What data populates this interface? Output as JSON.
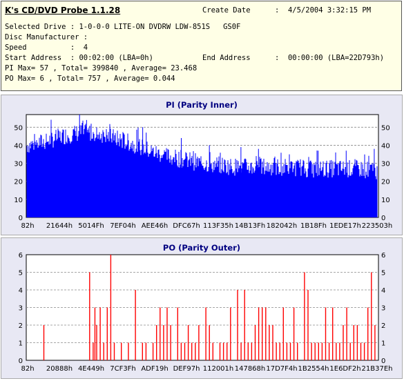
{
  "header": {
    "app_title": "K's CD/DVD Probe 1.1.28",
    "create_date_label": "Create Date",
    "create_date_value": ":  4/5/2004 3:32:15 PM",
    "selected_drive": "Selected Drive : 1-0-0-0 LITE-ON DVDRW LDW-851S   GS0F",
    "disc_manufacturer": "Disc Manufacturer :",
    "speed": "Speed          :  4",
    "start_address": "Start Address  : 00:02:00 (LBA=0h)",
    "end_address_label": "End Address",
    "end_address_value": ":  00:00:00 (LBA=22D793h)",
    "pi_summary": "PI Max= 57 , Total= 399840 , Average= 23.468",
    "po_summary": "PO Max= 6 , Total= 757 , Average= 0.044"
  },
  "chart_data": [
    {
      "type": "bar",
      "title": "PI (Parity Inner)",
      "color": "#0000ff",
      "ylim": [
        0,
        57
      ],
      "y_ticks": [
        "0",
        "10",
        "20",
        "30",
        "40",
        "50"
      ],
      "x_tick_labels": [
        "82h",
        "21644h",
        "5014Fh",
        "7EF04h",
        "AEE46h",
        "DFC67h",
        "113F35h",
        "14B13Fh",
        "182042h",
        "1B18Fh",
        "1EDE17h",
        "223503h"
      ],
      "grid": true,
      "profile_x": [
        0,
        0.05,
        0.1,
        0.15,
        0.2,
        0.25,
        0.3,
        0.35,
        0.4,
        0.45,
        0.5,
        0.55,
        0.6,
        0.65,
        0.7,
        0.75,
        0.8,
        0.85,
        0.9,
        0.95,
        1.0
      ],
      "profile_y": [
        40,
        42,
        45,
        47,
        47,
        44,
        41,
        37,
        34,
        32,
        30,
        29,
        28,
        28,
        28,
        28,
        27,
        27,
        27,
        27,
        26
      ],
      "spread": 5,
      "spikes": [
        [
          0.15,
          57
        ],
        [
          0.17,
          54
        ],
        [
          0.33,
          50
        ],
        [
          0.34,
          47
        ],
        [
          0.44,
          44
        ],
        [
          0.52,
          40
        ],
        [
          0.61,
          39
        ],
        [
          0.66,
          38
        ],
        [
          0.83,
          37
        ],
        [
          0.88,
          36
        ],
        [
          0.91,
          37
        ],
        [
          0.99,
          38
        ]
      ]
    },
    {
      "type": "bar",
      "title": "PO (Parity Outer)",
      "color": "#ff0000",
      "ylim": [
        0,
        6
      ],
      "y_ticks": [
        "0",
        "1",
        "2",
        "3",
        "4",
        "5",
        "6"
      ],
      "x_tick_labels": [
        "82h",
        "20888h",
        "4E449h",
        "7CF3Fh",
        "ADF19h",
        "DEF97h",
        "112001h",
        "147868h",
        "17D7F4h",
        "1B2554h",
        "1E6DF2h",
        "21B37Eh"
      ],
      "grid": true,
      "x": [
        0.05,
        0.18,
        0.19,
        0.195,
        0.2,
        0.21,
        0.22,
        0.23,
        0.24,
        0.25,
        0.27,
        0.29,
        0.31,
        0.33,
        0.34,
        0.36,
        0.37,
        0.38,
        0.39,
        0.4,
        0.41,
        0.43,
        0.44,
        0.45,
        0.46,
        0.47,
        0.48,
        0.49,
        0.51,
        0.52,
        0.53,
        0.55,
        0.56,
        0.57,
        0.58,
        0.6,
        0.61,
        0.62,
        0.63,
        0.64,
        0.65,
        0.66,
        0.67,
        0.68,
        0.69,
        0.7,
        0.71,
        0.72,
        0.73,
        0.74,
        0.75,
        0.76,
        0.77,
        0.79,
        0.8,
        0.81,
        0.82,
        0.83,
        0.84,
        0.85,
        0.86,
        0.87,
        0.88,
        0.89,
        0.9,
        0.91,
        0.92,
        0.93,
        0.94,
        0.95,
        0.96,
        0.97,
        0.98,
        0.99
      ],
      "values": [
        2,
        5,
        1,
        3,
        2,
        3,
        1,
        3,
        6,
        1,
        1,
        1,
        4,
        1,
        1,
        1,
        2,
        3,
        2,
        3,
        2,
        3,
        1,
        1,
        2,
        1,
        1,
        2,
        3,
        2,
        1,
        1,
        1,
        1,
        3,
        4,
        1,
        4,
        1,
        1,
        2,
        3,
        3,
        3,
        2,
        2,
        1,
        1,
        3,
        1,
        1,
        3,
        1,
        5,
        4,
        1,
        1,
        1,
        1,
        3,
        1,
        3,
        1,
        1,
        2,
        3,
        1,
        2,
        2,
        1,
        1,
        3,
        5,
        2
      ]
    }
  ]
}
